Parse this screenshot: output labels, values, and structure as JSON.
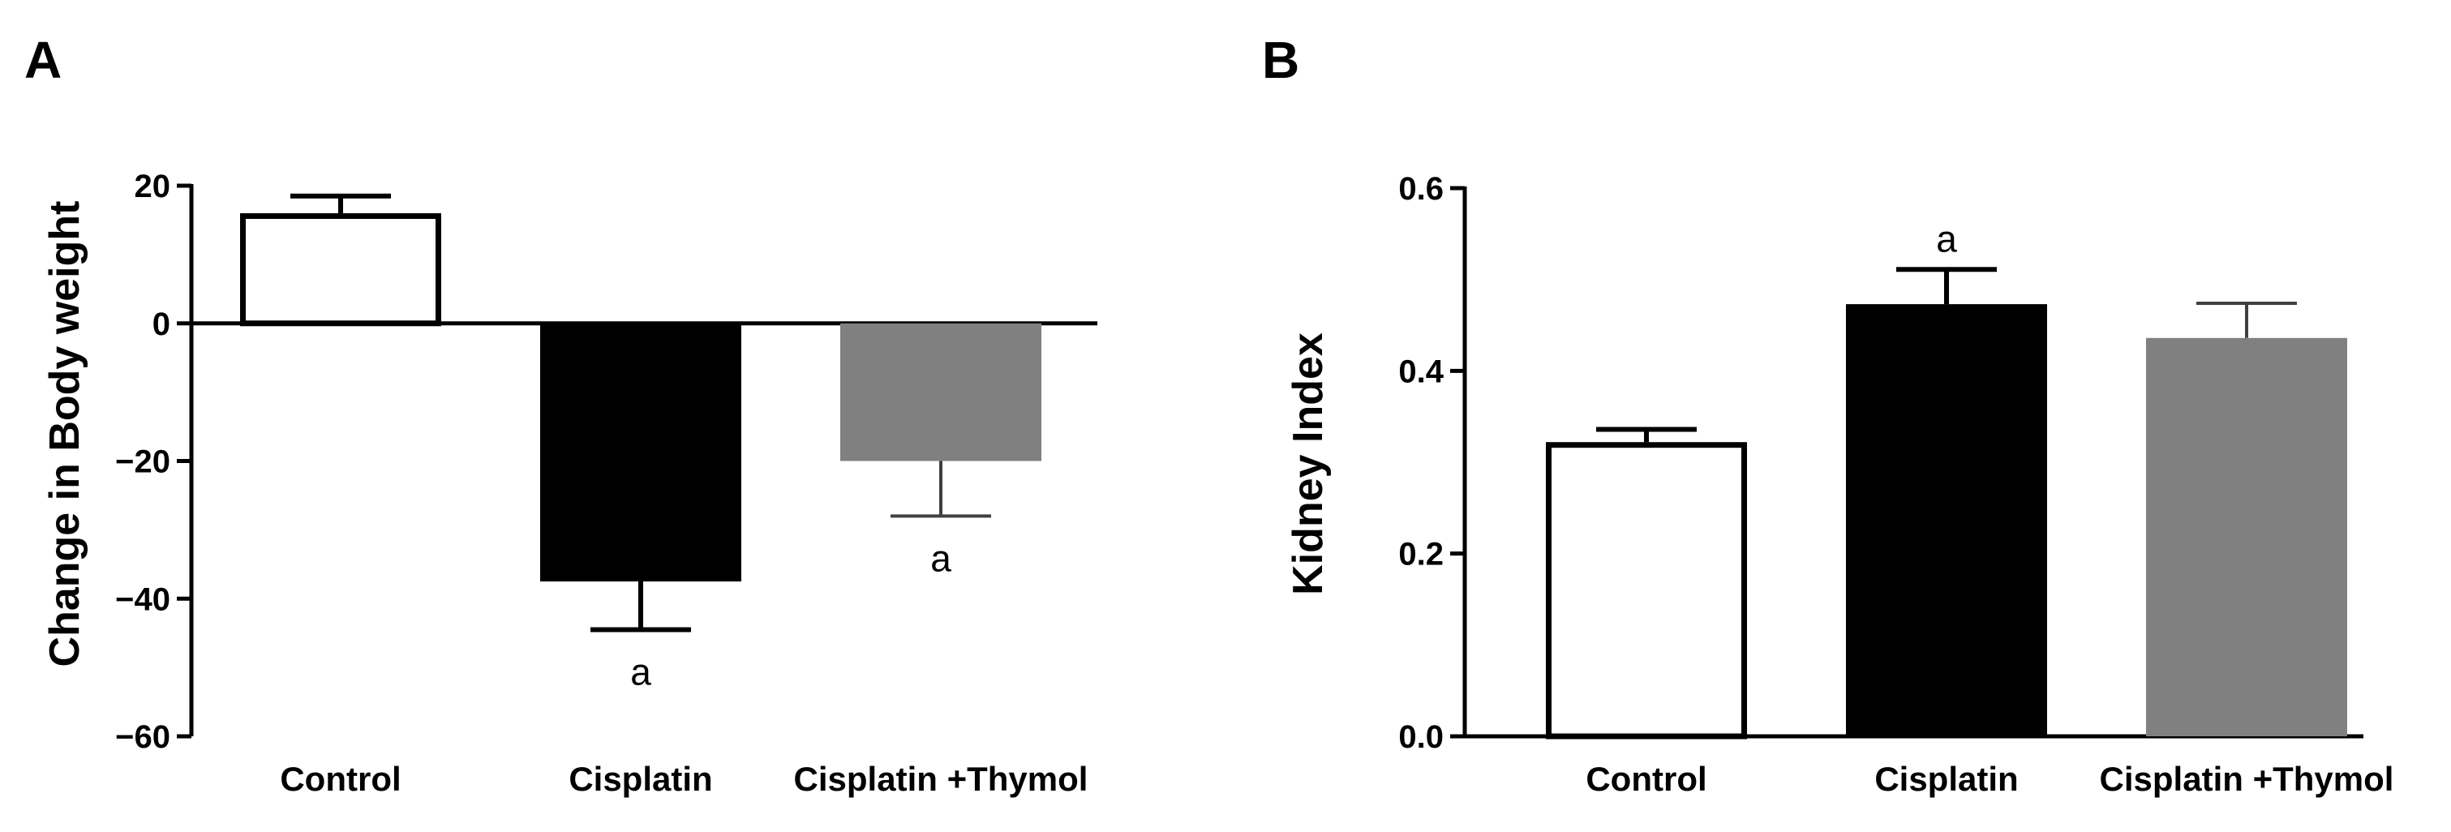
{
  "chart_data": [
    {
      "panel": "A",
      "type": "bar",
      "title": "",
      "xlabel": "",
      "ylabel": "Change in Body weight",
      "ylim": [
        -60,
        20
      ],
      "yticks": [
        20,
        0,
        -20,
        -40,
        -60
      ],
      "yticks_labels": [
        "20",
        "0",
        "−20",
        "−40",
        "−60"
      ],
      "categories": [
        "Control",
        "Cisplatin",
        "Cisplatin +Thymol"
      ],
      "values": [
        16,
        -37.5,
        -20
      ],
      "errors": [
        2.5,
        7,
        8
      ],
      "significance": [
        "",
        "a",
        "a"
      ],
      "bar_colors": [
        "#ffffff",
        "#000000",
        "#808080"
      ],
      "error_colors": [
        "#000000",
        "#000000",
        "#404040"
      ]
    },
    {
      "panel": "B",
      "type": "bar",
      "title": "",
      "xlabel": "",
      "ylabel": "Kidney Index",
      "ylim": [
        0,
        0.6
      ],
      "yticks": [
        0.6,
        0.4,
        0.2,
        0.0
      ],
      "yticks_labels": [
        "0.6",
        "0.4",
        "0.2",
        "0.0"
      ],
      "categories": [
        "Control",
        "Cisplatin",
        "Cisplatin +Thymol"
      ],
      "values": [
        0.322,
        0.473,
        0.436
      ],
      "errors": [
        0.014,
        0.038,
        0.038
      ],
      "significance": [
        "",
        "a",
        ""
      ],
      "bar_colors": [
        "#ffffff",
        "#000000",
        "#808080"
      ],
      "error_colors": [
        "#000000",
        "#000000",
        "#404040"
      ]
    }
  ]
}
